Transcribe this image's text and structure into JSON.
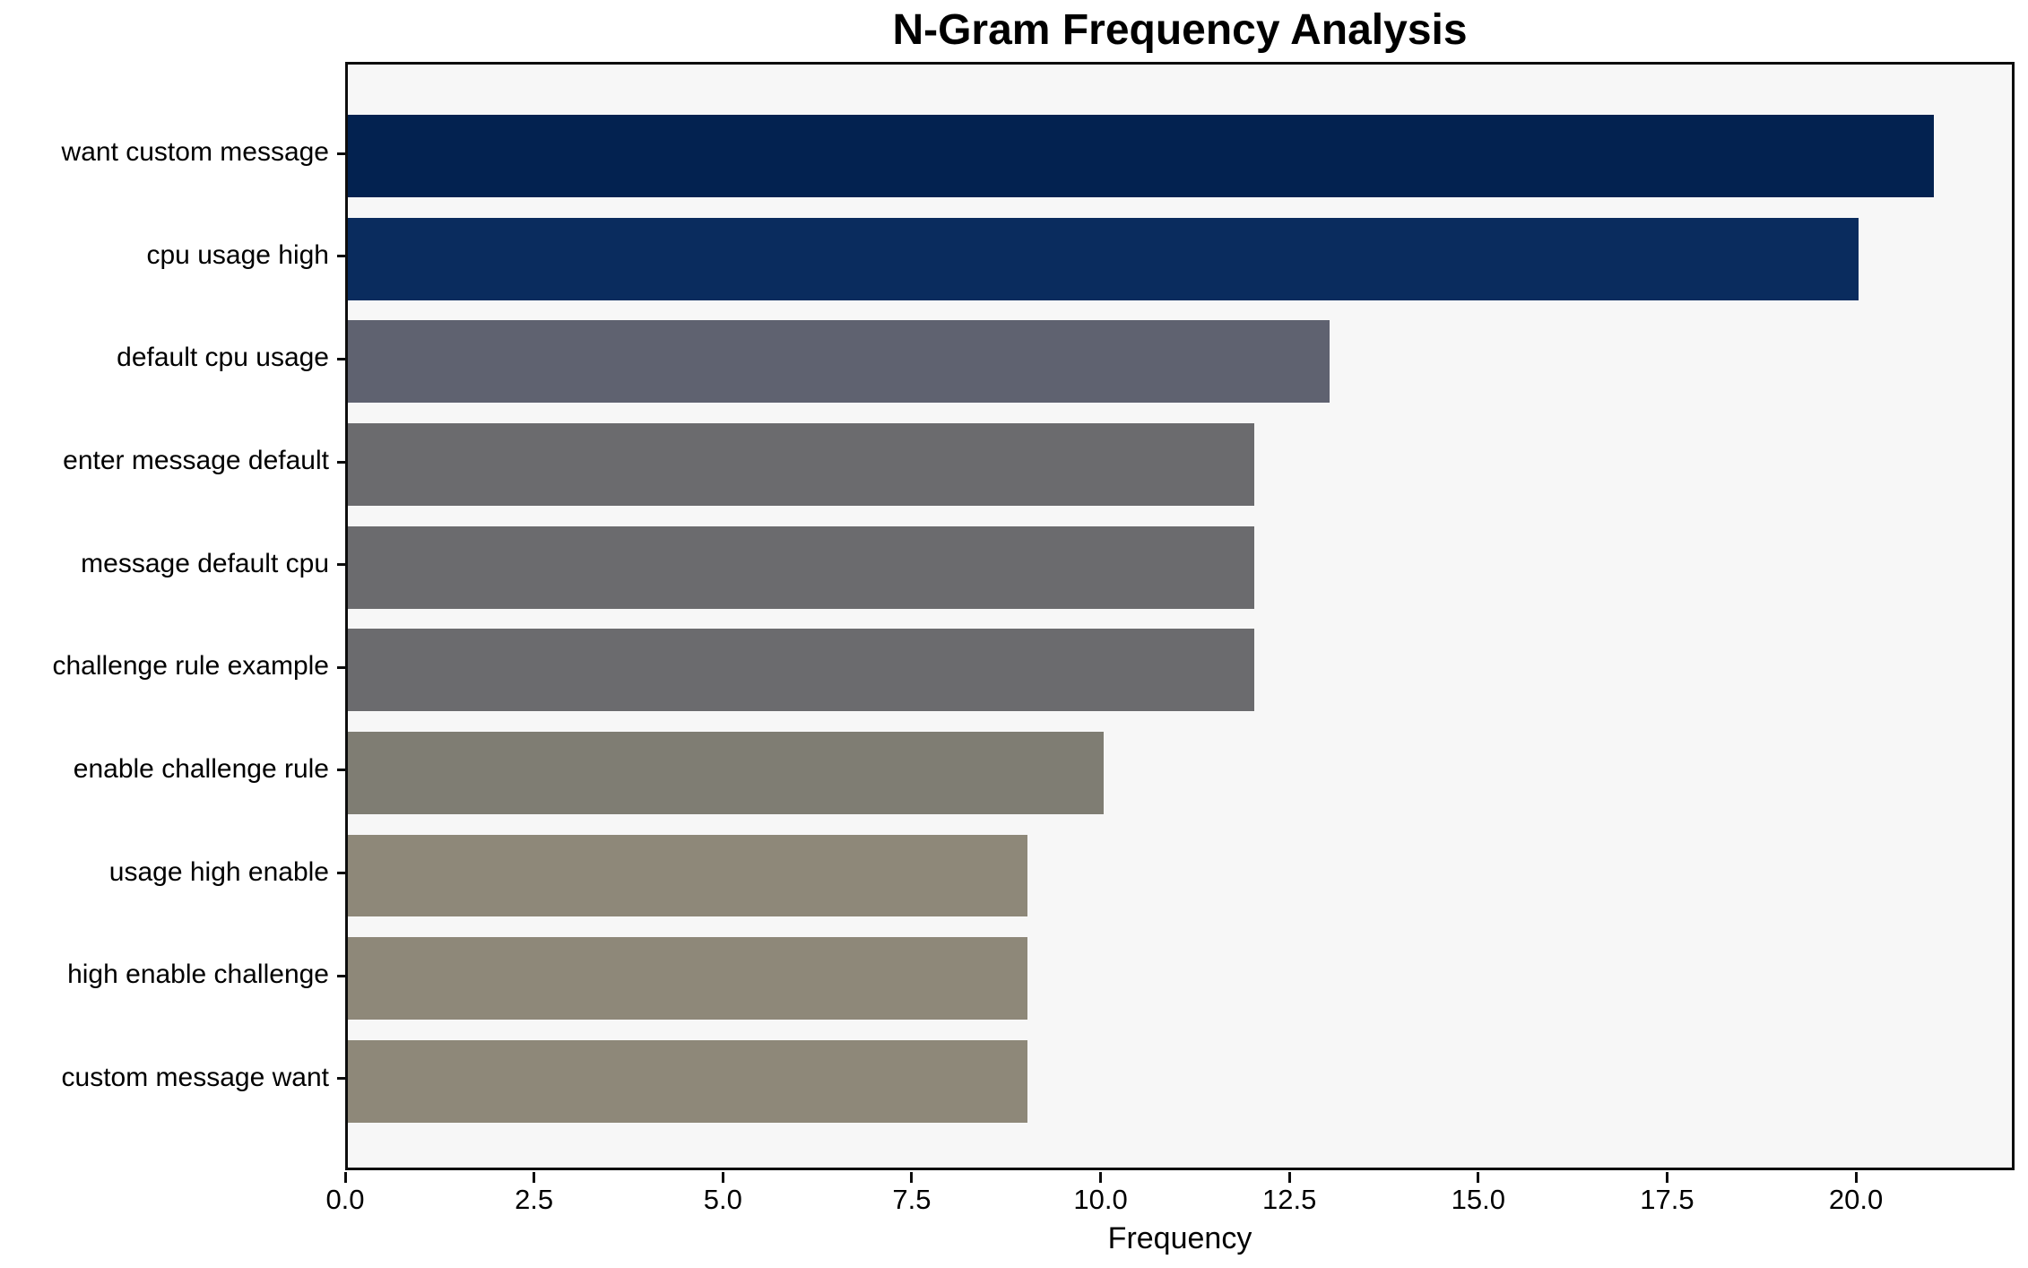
{
  "figure": {
    "title": "N-Gram Frequency Analysis",
    "xlabel": "Frequency"
  },
  "chart_data": {
    "type": "bar",
    "orientation": "horizontal",
    "title": "N-Gram Frequency Analysis",
    "xlabel": "Frequency",
    "ylabel": "",
    "categories": [
      "want custom message",
      "cpu usage high",
      "default cpu usage",
      "enter message default",
      "message default cpu",
      "challenge rule example",
      "enable challenge rule",
      "usage high enable",
      "high enable challenge",
      "custom message want"
    ],
    "values": [
      21,
      20,
      13,
      12,
      12,
      12,
      10,
      9,
      9,
      9
    ],
    "bar_colors": [
      "#032250",
      "#0a2c5e",
      "#5f6270",
      "#6b6b6e",
      "#6b6b6e",
      "#6b6b6e",
      "#7f7d73",
      "#8e8879",
      "#8e8879",
      "#8e8879"
    ],
    "x_tick_labels": [
      "0.0",
      "2.5",
      "5.0",
      "7.5",
      "10.0",
      "12.5",
      "15.0",
      "17.5",
      "20.0"
    ],
    "x_tick_values": [
      0,
      2.5,
      5,
      7.5,
      10,
      12.5,
      15,
      17.5,
      20
    ],
    "xlim": [
      0,
      22.1
    ],
    "bar_fraction": 0.8,
    "grid": false,
    "legend": false,
    "plot_background": "#f7f7f7",
    "figure_background": "#ffffff",
    "axis_color": "#0d0d0d",
    "text_color": "#000000"
  }
}
